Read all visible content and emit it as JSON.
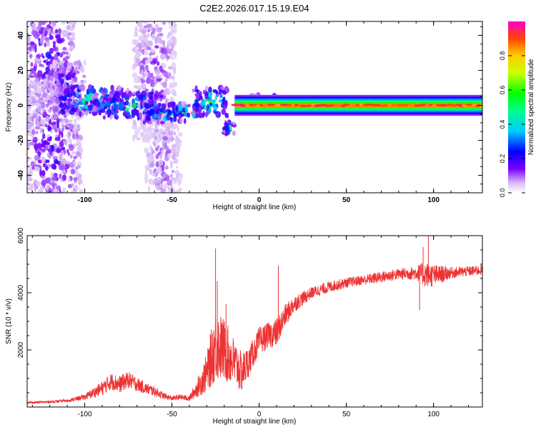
{
  "title": "C2E2.2026.017.15.19.E04",
  "chart_data": [
    {
      "type": "heatmap",
      "xlabel": "Height of straight line (km)",
      "ylabel": "Frequency (Hz)",
      "xlim": [
        -133,
        128
      ],
      "ylim": [
        -50,
        48
      ],
      "xticks": [
        -100,
        -50,
        0,
        50,
        100
      ],
      "yticks": [
        -40,
        -20,
        0,
        20,
        40
      ],
      "colorbar": {
        "label": "Normalized spectral amplitude",
        "range": [
          0,
          1
        ],
        "ticks": [
          "0.0",
          "0.2",
          "0.4",
          "0.6",
          "0.8"
        ]
      },
      "line_band": {
        "from_x": -14,
        "to_x": 128,
        "center_freq": 0,
        "amplitude": 0.95
      },
      "blobs": [
        {
          "x": -120,
          "f": 30,
          "w": 14,
          "h": 30,
          "amp": 0.18
        },
        {
          "x": -118,
          "f": -25,
          "w": 16,
          "h": 40,
          "amp": 0.16
        },
        {
          "x": -110,
          "f": 10,
          "w": 10,
          "h": 15,
          "amp": 0.22
        },
        {
          "x": -60,
          "f": 20,
          "w": 12,
          "h": 40,
          "amp": 0.12
        },
        {
          "x": -55,
          "f": -30,
          "w": 10,
          "h": 30,
          "amp": 0.1
        },
        {
          "x": -95,
          "f": 3,
          "w": 20,
          "h": 8,
          "amp": 0.45
        },
        {
          "x": -75,
          "f": 0,
          "w": 20,
          "h": 7,
          "amp": 0.42
        },
        {
          "x": -55,
          "f": -4,
          "w": 14,
          "h": 6,
          "amp": 0.4
        },
        {
          "x": -40,
          "f": -3,
          "w": 8,
          "h": 3,
          "amp": 0.7
        },
        {
          "x": -28,
          "f": 2,
          "w": 10,
          "h": 8,
          "amp": 0.45
        },
        {
          "x": -17,
          "f": -13,
          "w": 3,
          "h": 3,
          "amp": 0.4
        },
        {
          "x": 5,
          "f": 2,
          "w": 10,
          "h": 4,
          "amp": 0.35
        }
      ]
    },
    {
      "type": "line",
      "xlabel": "Height of straight line (km)",
      "ylabel": "SNR (10 * v/v)",
      "xlim": [
        -133,
        128
      ],
      "ylim": [
        0,
        6000
      ],
      "xticks": [
        -100,
        -50,
        0,
        50,
        100
      ],
      "yticks": [
        2000,
        4000,
        6000
      ],
      "color": "#ee3333",
      "series": [
        {
          "name": "SNR",
          "x": [
            -133,
            -120,
            -110,
            -100,
            -90,
            -85,
            -80,
            -75,
            -70,
            -65,
            -60,
            -55,
            -50,
            -45,
            -40,
            -35,
            -30,
            -25,
            -20,
            -15,
            -10,
            -5,
            0,
            5,
            10,
            15,
            20,
            25,
            30,
            40,
            50,
            60,
            70,
            80,
            90,
            95,
            100,
            110,
            120,
            128
          ],
          "values": [
            150,
            180,
            220,
            350,
            650,
            900,
            800,
            950,
            800,
            650,
            550,
            400,
            300,
            350,
            300,
            700,
            1200,
            2200,
            2000,
            1600,
            1200,
            1700,
            2300,
            2500,
            2600,
            3200,
            3600,
            3800,
            4000,
            4200,
            4350,
            4450,
            4550,
            4650,
            4700,
            4650,
            4600,
            4700,
            4750,
            4800
          ],
          "noise": [
            40,
            40,
            50,
            100,
            250,
            300,
            300,
            300,
            250,
            200,
            180,
            120,
            80,
            100,
            100,
            350,
            700,
            1300,
            1100,
            900,
            700,
            500,
            500,
            450,
            500,
            400,
            300,
            250,
            200,
            200,
            180,
            180,
            200,
            200,
            250,
            450,
            400,
            200,
            180,
            180
          ]
        }
      ],
      "spikes": [
        {
          "x": -25,
          "value": 5550
        },
        {
          "x": -24,
          "value": 4400
        },
        {
          "x": -19,
          "value": 3600
        },
        {
          "x": 11,
          "value": 4950
        },
        {
          "x": 97,
          "value": 6000
        },
        {
          "x": 94,
          "value": 5600
        },
        {
          "x": 92,
          "value": 3400
        }
      ]
    }
  ]
}
